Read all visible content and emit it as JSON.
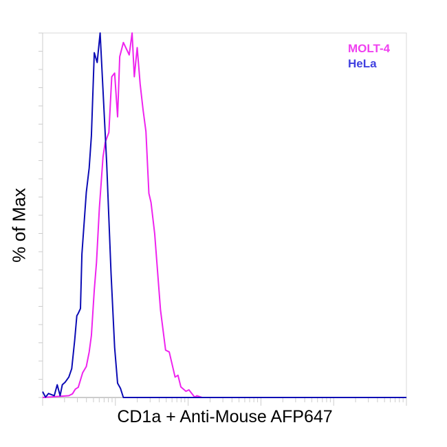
{
  "chart_data": {
    "type": "line",
    "title": "",
    "xlabel": "CD1a + Anti-Mouse AFP647",
    "ylabel": "% of Max",
    "xscale": "log",
    "x_decades_range": [
      0,
      5
    ],
    "ylim": [
      0,
      100
    ],
    "tick_labels_shown": false,
    "grid": false,
    "legend_position": "top-right",
    "series": [
      {
        "name": "MOLT-4",
        "color": "#ee22ee",
        "legend_color": "#f040f0",
        "x": [
          0,
          0.36,
          0.41,
          0.45,
          0.49,
          0.55,
          0.6,
          0.64,
          0.67,
          0.71,
          0.74,
          0.78,
          0.83,
          0.86,
          0.91,
          0.95,
          0.99,
          1.03,
          1.06,
          1.11,
          1.19,
          1.23,
          1.26,
          1.3,
          1.34,
          1.38,
          1.42,
          1.46,
          1.49,
          1.54,
          1.62,
          1.69,
          1.74,
          1.82,
          1.86,
          1.9,
          1.97,
          2.01,
          2.09,
          2.12,
          2.19,
          5
        ],
        "y": [
          0,
          0.5,
          1.0,
          2.3,
          2.8,
          6.8,
          8.5,
          12.5,
          17,
          29.5,
          37,
          52,
          66,
          70,
          72.7,
          88,
          89,
          77,
          93.5,
          97.4,
          94,
          100,
          88,
          96,
          86,
          79,
          73,
          56,
          53.5,
          45,
          24,
          13,
          12.5,
          5.6,
          6.1,
          2.9,
          1.7,
          2.1,
          0.1,
          0.5,
          0,
          0
        ]
      },
      {
        "name": "HeLa",
        "color": "#0a0ab4",
        "legend_color": "#4040e0",
        "x": [
          0,
          0.04,
          0.08,
          0.16,
          0.2,
          0.24,
          0.27,
          0.31,
          0.36,
          0.4,
          0.44,
          0.47,
          0.49,
          0.52,
          0.54,
          0.6,
          0.64,
          0.67,
          0.71,
          0.75,
          0.79,
          0.88,
          0.94,
          0.99,
          1.03,
          1.07,
          1.11,
          5
        ],
        "y": [
          1.6,
          0.1,
          1.1,
          0.5,
          3.5,
          0.5,
          3.5,
          4.2,
          5.6,
          7.9,
          15.7,
          22.4,
          23.1,
          24.4,
          39.3,
          56.3,
          63.0,
          71.8,
          94.6,
          91.9,
          100,
          64.4,
          34.0,
          13.7,
          3.9,
          2.5,
          0,
          0
        ]
      }
    ]
  }
}
